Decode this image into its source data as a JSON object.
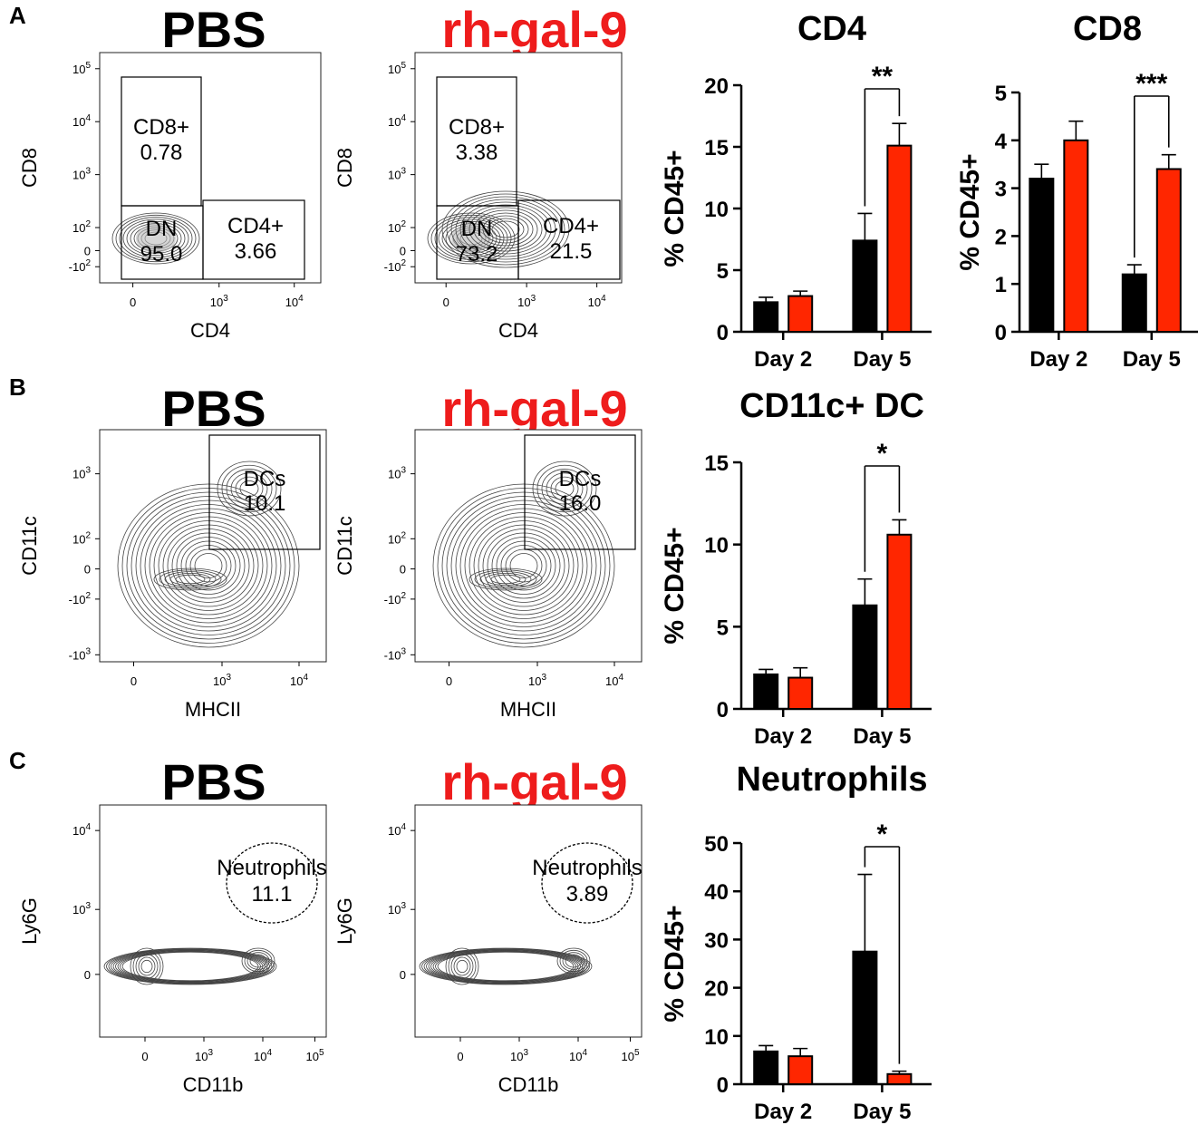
{
  "colors": {
    "pbs": "#000000",
    "gal9": "#ff2600",
    "gal9_title": "#ee1c1c"
  },
  "panels": [
    {
      "letter": "A",
      "titles": [
        "PBS",
        "rh-gal-9"
      ]
    },
    {
      "letter": "B",
      "titles": [
        "PBS",
        "rh-gal-9"
      ]
    },
    {
      "letter": "C",
      "titles": [
        "PBS",
        "rh-gal-9"
      ]
    }
  ],
  "flow_plots": [
    {
      "id": "A-pbs",
      "xlabel": "CD4",
      "ylabel": "CD8",
      "xticks": [
        "0",
        "10^3",
        "10^4"
      ],
      "yticks": [
        "10^5",
        "10^4",
        "10^3",
        "10^2",
        "0",
        "-10^2"
      ],
      "gates": [
        {
          "name": "CD8+",
          "value": "0.78"
        },
        {
          "name": "DN",
          "value": "95.0"
        },
        {
          "name": "CD4+",
          "value": "3.66"
        }
      ]
    },
    {
      "id": "A-gal9",
      "xlabel": "CD4",
      "ylabel": "CD8",
      "xticks": [
        "0",
        "10^3",
        "10^4"
      ],
      "yticks": [
        "10^5",
        "10^4",
        "10^3",
        "10^2",
        "0",
        "-10^2"
      ],
      "gates": [
        {
          "name": "CD8+",
          "value": "3.38"
        },
        {
          "name": "DN",
          "value": "73.2"
        },
        {
          "name": "CD4+",
          "value": "21.5"
        }
      ]
    },
    {
      "id": "B-pbs",
      "xlabel": "MHCII",
      "ylabel": "CD11c",
      "xticks": [
        "0",
        "10^3",
        "10^4"
      ],
      "yticks": [
        "10^3",
        "10^2",
        "0",
        "-10^2",
        "-10^3"
      ],
      "gates": [
        {
          "name": "DCs",
          "value": "10.1"
        }
      ]
    },
    {
      "id": "B-gal9",
      "xlabel": "MHCII",
      "ylabel": "CD11c",
      "xticks": [
        "0",
        "10^3",
        "10^4"
      ],
      "yticks": [
        "10^3",
        "10^2",
        "0",
        "-10^2",
        "-10^3"
      ],
      "gates": [
        {
          "name": "DCs",
          "value": "16.0"
        }
      ]
    },
    {
      "id": "C-pbs",
      "xlabel": "CD11b",
      "ylabel": "Ly6G",
      "xticks": [
        "0",
        "10^3",
        "10^4",
        "10^5"
      ],
      "yticks": [
        "10^4",
        "10^3",
        "0"
      ],
      "gates": [
        {
          "name": "Neutrophils",
          "value": "11.1"
        }
      ]
    },
    {
      "id": "C-gal9",
      "xlabel": "CD11b",
      "ylabel": "Ly6G",
      "xticks": [
        "0",
        "10^3",
        "10^4",
        "10^5"
      ],
      "yticks": [
        "10^4",
        "10^3",
        "0"
      ],
      "gates": [
        {
          "name": "Neutrophils",
          "value": "3.89"
        }
      ]
    }
  ],
  "chart_data": [
    {
      "type": "bar",
      "title": "CD4",
      "ylabel": "% CD45+",
      "categories": [
        "Day 2",
        "Day 5"
      ],
      "ylim": [
        0,
        20
      ],
      "yticks": [
        0,
        5,
        10,
        15,
        20
      ],
      "series": [
        {
          "name": "PBS",
          "values": [
            2.4,
            7.4
          ],
          "errors": [
            0.4,
            2.2
          ]
        },
        {
          "name": "rh-gal-9",
          "values": [
            2.9,
            15.1
          ],
          "errors": [
            0.4,
            1.8
          ]
        }
      ],
      "significance": [
        {
          "category": "Day 5",
          "label": "**"
        }
      ]
    },
    {
      "type": "bar",
      "title": "CD8",
      "ylabel": "% CD45+",
      "categories": [
        "Day 2",
        "Day 5"
      ],
      "ylim": [
        0,
        5
      ],
      "yticks": [
        0,
        1,
        2,
        3,
        4,
        5
      ],
      "series": [
        {
          "name": "PBS",
          "values": [
            3.2,
            1.2
          ],
          "errors": [
            0.3,
            0.2
          ]
        },
        {
          "name": "rh-gal-9",
          "values": [
            4.0,
            3.4
          ],
          "errors": [
            0.4,
            0.3
          ]
        }
      ],
      "significance": [
        {
          "category": "Day 5",
          "label": "***"
        }
      ]
    },
    {
      "type": "bar",
      "title": "CD11c+ DC",
      "ylabel": "% CD45+",
      "categories": [
        "Day 2",
        "Day 5"
      ],
      "ylim": [
        0,
        15
      ],
      "yticks": [
        0,
        5,
        10,
        15
      ],
      "series": [
        {
          "name": "PBS",
          "values": [
            2.1,
            6.3
          ],
          "errors": [
            0.3,
            1.6
          ]
        },
        {
          "name": "rh-gal-9",
          "values": [
            1.9,
            10.6
          ],
          "errors": [
            0.6,
            0.9
          ]
        }
      ],
      "significance": [
        {
          "category": "Day 5",
          "label": "*"
        }
      ]
    },
    {
      "type": "bar",
      "title": "Neutrophils",
      "ylabel": "% CD45+",
      "categories": [
        "Day 2",
        "Day 5"
      ],
      "ylim": [
        0,
        50
      ],
      "yticks": [
        0,
        10,
        20,
        30,
        40,
        50
      ],
      "series": [
        {
          "name": "PBS",
          "values": [
            6.8,
            27.5
          ],
          "errors": [
            1.2,
            16.0
          ]
        },
        {
          "name": "rh-gal-9",
          "values": [
            5.8,
            2.1
          ],
          "errors": [
            1.6,
            0.6
          ]
        }
      ],
      "significance": [
        {
          "category": "Day 5",
          "label": "*"
        }
      ]
    }
  ]
}
